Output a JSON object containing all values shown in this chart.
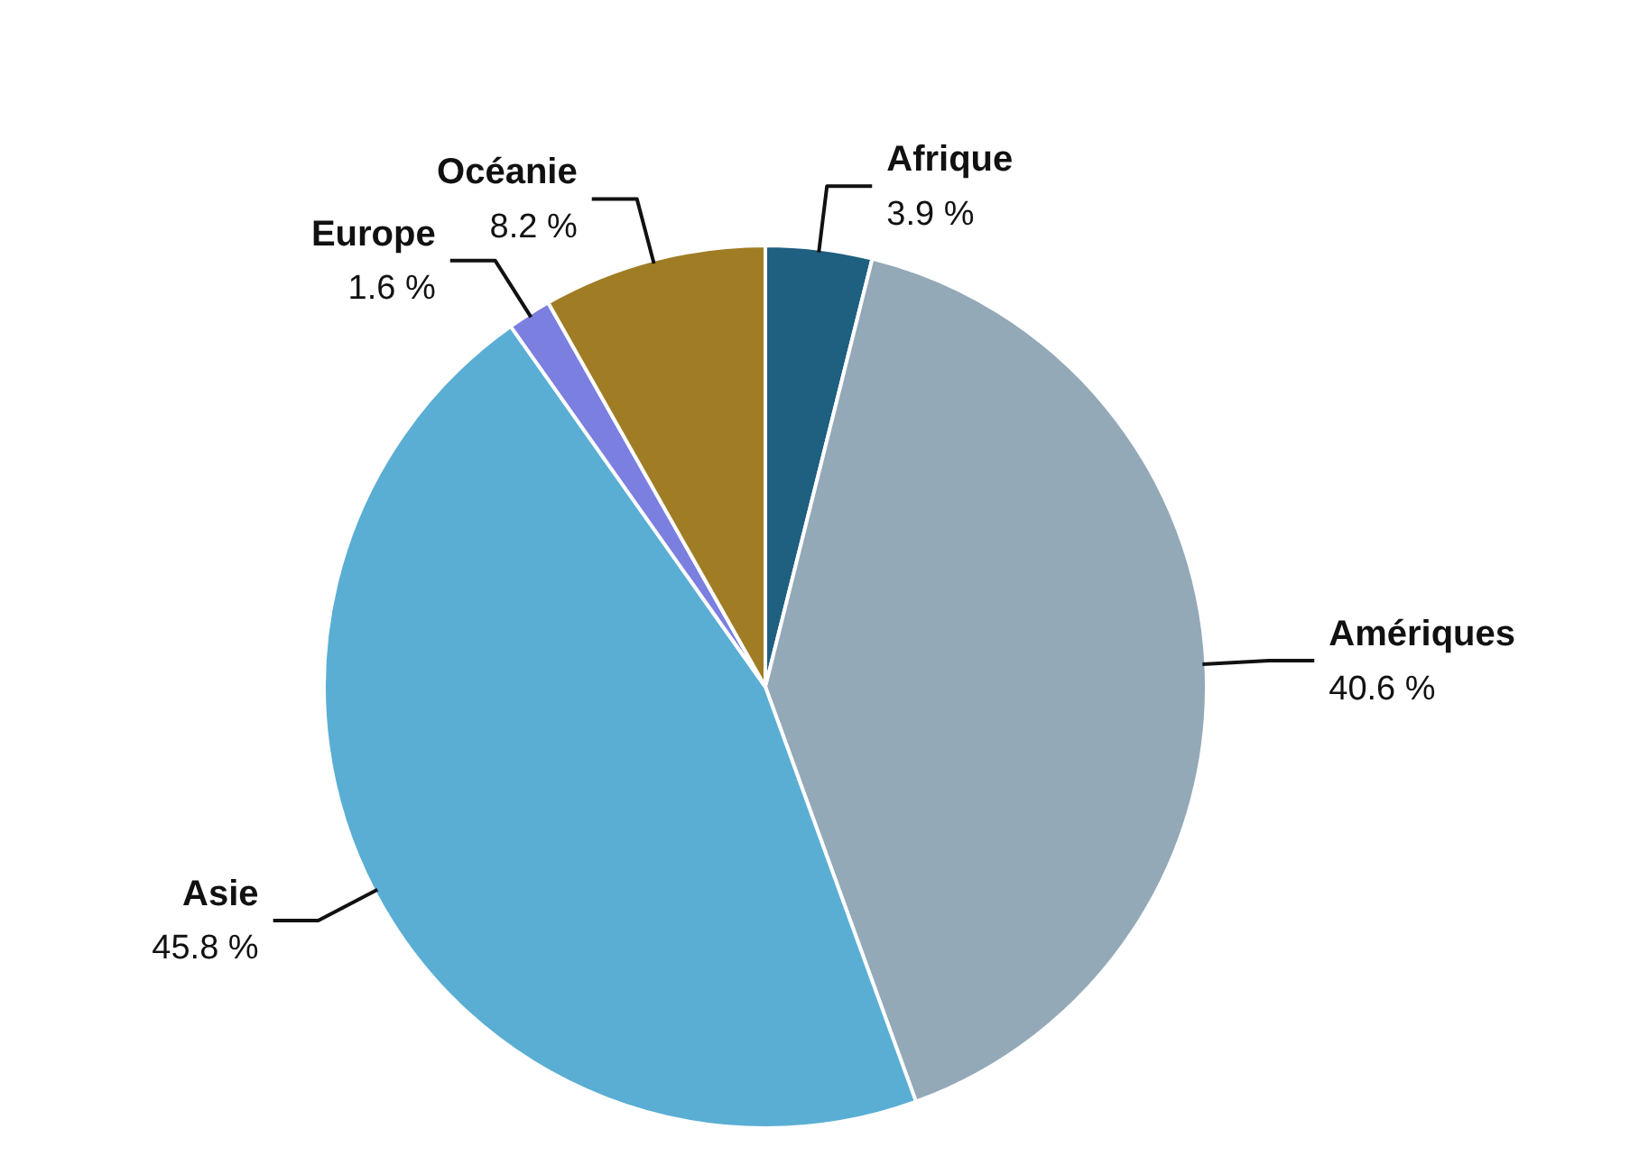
{
  "chart_data": {
    "type": "pie",
    "categories": [
      "Afrique",
      "Amériques",
      "Asie",
      "Europe",
      "Océanie"
    ],
    "values": [
      3.9,
      40.6,
      45.8,
      1.6,
      8.2
    ],
    "value_labels": [
      "3.9 %",
      "40.6 %",
      "45.8 %",
      "1.6 %",
      "8.2 %"
    ],
    "colors": [
      "#1f5f80",
      "#94a9b8",
      "#5aaed4",
      "#7b7fe0",
      "#a07d24"
    ],
    "legend": false
  }
}
